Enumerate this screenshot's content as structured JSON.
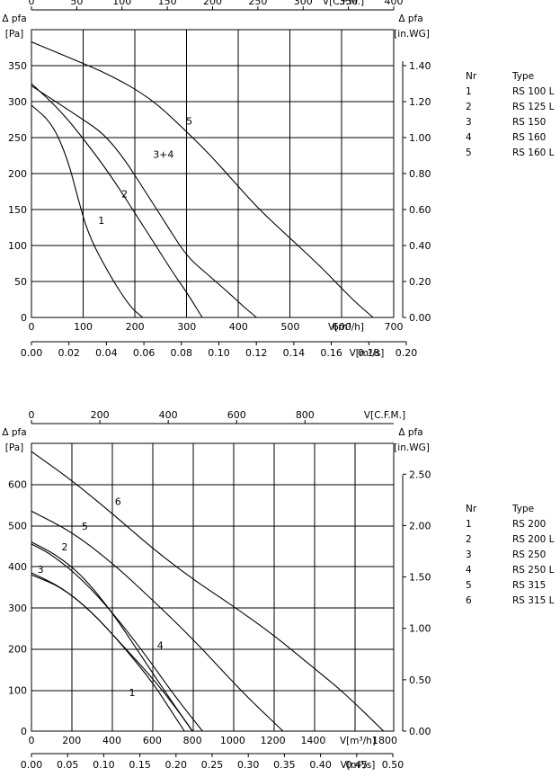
{
  "chart_data": [
    {
      "type": "line",
      "x_top": {
        "label": "V[C.F.M.]",
        "ticks": [
          "0",
          "50",
          "100",
          "150",
          "200",
          "250",
          "300",
          "350",
          "400"
        ],
        "range": [
          0,
          400
        ]
      },
      "x_bottom_primary": {
        "label": "V[m³/h]",
        "ticks": [
          "0",
          "100",
          "200",
          "300",
          "400",
          "500",
          "600",
          "700"
        ],
        "range": [
          0,
          700
        ]
      },
      "x_bottom_secondary": {
        "label": "V[m³/s]",
        "ticks": [
          "0.00",
          "0.02",
          "0.04",
          "0.06",
          "0.08",
          "0.10",
          "0.12",
          "0.14",
          "0.16",
          "0.18",
          "0.20"
        ],
        "range": [
          0,
          0.2
        ]
      },
      "y_left": {
        "label": "Δ pfa",
        "unit": "[Pa]",
        "ticks": [
          "0",
          "50",
          "100",
          "150",
          "200",
          "250",
          "300",
          "350"
        ],
        "range": [
          0,
          400
        ]
      },
      "y_right": {
        "label": "Δ pfa",
        "unit": "[in.WG]",
        "ticks": [
          "0.00",
          "0.20",
          "0.40",
          "0.60",
          "0.80",
          "1.00",
          "1.20",
          "1.40"
        ],
        "range": [
          0,
          1.6
        ]
      },
      "grid": true,
      "series": [
        {
          "name": "1",
          "x": [
            0,
            40,
            70,
            90,
            110,
            150,
            190,
            215
          ],
          "y": [
            295,
            270,
            220,
            165,
            115,
            60,
            15,
            0
          ]
        },
        {
          "name": "2",
          "x": [
            0,
            60,
            120,
            160,
            200,
            240,
            280,
            300,
            330
          ],
          "y": [
            325,
            285,
            230,
            190,
            145,
            100,
            55,
            35,
            0
          ]
        },
        {
          "name": "3+4",
          "x": [
            0,
            100,
            140,
            180,
            220,
            260,
            300,
            340,
            380,
            410,
            435
          ],
          "y": [
            322,
            275,
            255,
            220,
            175,
            130,
            85,
            60,
            35,
            15,
            0
          ]
        },
        {
          "name": "5",
          "x": [
            0,
            70,
            150,
            230,
            290,
            340,
            390,
            440,
            500,
            560,
            620,
            660
          ],
          "y": [
            383,
            362,
            338,
            305,
            265,
            230,
            190,
            150,
            110,
            70,
            25,
            0
          ]
        }
      ],
      "labels": [
        {
          "text": "1",
          "x": 135,
          "y": 130
        },
        {
          "text": "2",
          "x": 180,
          "y": 167
        },
        {
          "text": "3+4",
          "x": 255,
          "y": 222
        },
        {
          "text": "5",
          "x": 305,
          "y": 268
        }
      ],
      "legend": {
        "header_nr": "Nr",
        "header_type": "Type",
        "rows": [
          [
            "1",
            "RS 100 L"
          ],
          [
            "2",
            "RS 125 L"
          ],
          [
            "3",
            "RS 150"
          ],
          [
            "4",
            "RS 160"
          ],
          [
            "5",
            "RS 160 L"
          ]
        ]
      }
    },
    {
      "type": "line",
      "x_top": {
        "label": "V[C.F.M.]",
        "ticks": [
          "0",
          "200",
          "400",
          "600",
          "800"
        ],
        "range": [
          0,
          1059.4
        ]
      },
      "x_bottom_primary": {
        "label": "V[m³/h]",
        "ticks": [
          "0",
          "200",
          "400",
          "600",
          "800",
          "1000",
          "1200",
          "1400",
          "1800"
        ],
        "range": [
          0,
          1800
        ]
      },
      "x_bottom_secondary": {
        "label": "V[m³/s]",
        "ticks": [
          "0.00",
          "0.05",
          "0.10",
          "0.15",
          "0.20",
          "0.25",
          "0.30",
          "0.35",
          "0.40",
          "0.45",
          "0.50"
        ],
        "range": [
          0,
          0.5
        ]
      },
      "y_left": {
        "label": "Δ pfa",
        "unit": "[Pa]",
        "ticks": [
          "0",
          "100",
          "200",
          "300",
          "400",
          "500",
          "600"
        ],
        "range": [
          0,
          700
        ]
      },
      "y_right": {
        "label": "Δ pfa",
        "unit": "[in.WG]",
        "ticks": [
          "0.00",
          "0.50",
          "1.00",
          "1.50",
          "2.00",
          "2.50"
        ],
        "range": [
          0,
          2.8
        ]
      },
      "grid": true,
      "series": [
        {
          "name": "1",
          "x": [
            0,
            150,
            300,
            450,
            600,
            700,
            760
          ],
          "y": [
            380,
            350,
            290,
            210,
            120,
            45,
            0
          ]
        },
        {
          "name": "2",
          "x": [
            0,
            120,
            250,
            400,
            550,
            700,
            800
          ],
          "y": [
            460,
            430,
            380,
            290,
            180,
            70,
            0
          ]
        },
        {
          "name": "3",
          "x": [
            0,
            150,
            300,
            450,
            600,
            720,
            800
          ],
          "y": [
            385,
            350,
            290,
            210,
            130,
            55,
            0
          ]
        },
        {
          "name": "4",
          "x": [
            0,
            100,
            250,
            400,
            560,
            720,
            850
          ],
          "y": [
            455,
            430,
            370,
            290,
            190,
            80,
            0
          ]
        },
        {
          "name": "5",
          "x": [
            0,
            200,
            400,
            600,
            800,
            1000,
            1100,
            1250
          ],
          "y": [
            535,
            485,
            410,
            320,
            225,
            120,
            70,
            0
          ]
        },
        {
          "name": "6",
          "x": [
            0,
            200,
            400,
            600,
            800,
            1000,
            1200,
            1400,
            1550,
            1750
          ],
          "y": [
            680,
            610,
            530,
            445,
            370,
            305,
            235,
            155,
            95,
            0
          ]
        }
      ],
      "labels": [
        {
          "text": "1",
          "x": 500,
          "y": 85
        },
        {
          "text": "2",
          "x": 165,
          "y": 440
        },
        {
          "text": "3",
          "x": 45,
          "y": 385
        },
        {
          "text": "4",
          "x": 640,
          "y": 200
        },
        {
          "text": "5",
          "x": 265,
          "y": 490
        },
        {
          "text": "6",
          "x": 430,
          "y": 550
        }
      ],
      "legend": {
        "header_nr": "Nr",
        "header_type": "Type",
        "rows": [
          [
            "1",
            "RS 200"
          ],
          [
            "2",
            "RS 200 L"
          ],
          [
            "3",
            "RS 250"
          ],
          [
            "4",
            "RS 250 L"
          ],
          [
            "5",
            "RS 315"
          ],
          [
            "6",
            "RS 315 L"
          ]
        ]
      }
    }
  ]
}
